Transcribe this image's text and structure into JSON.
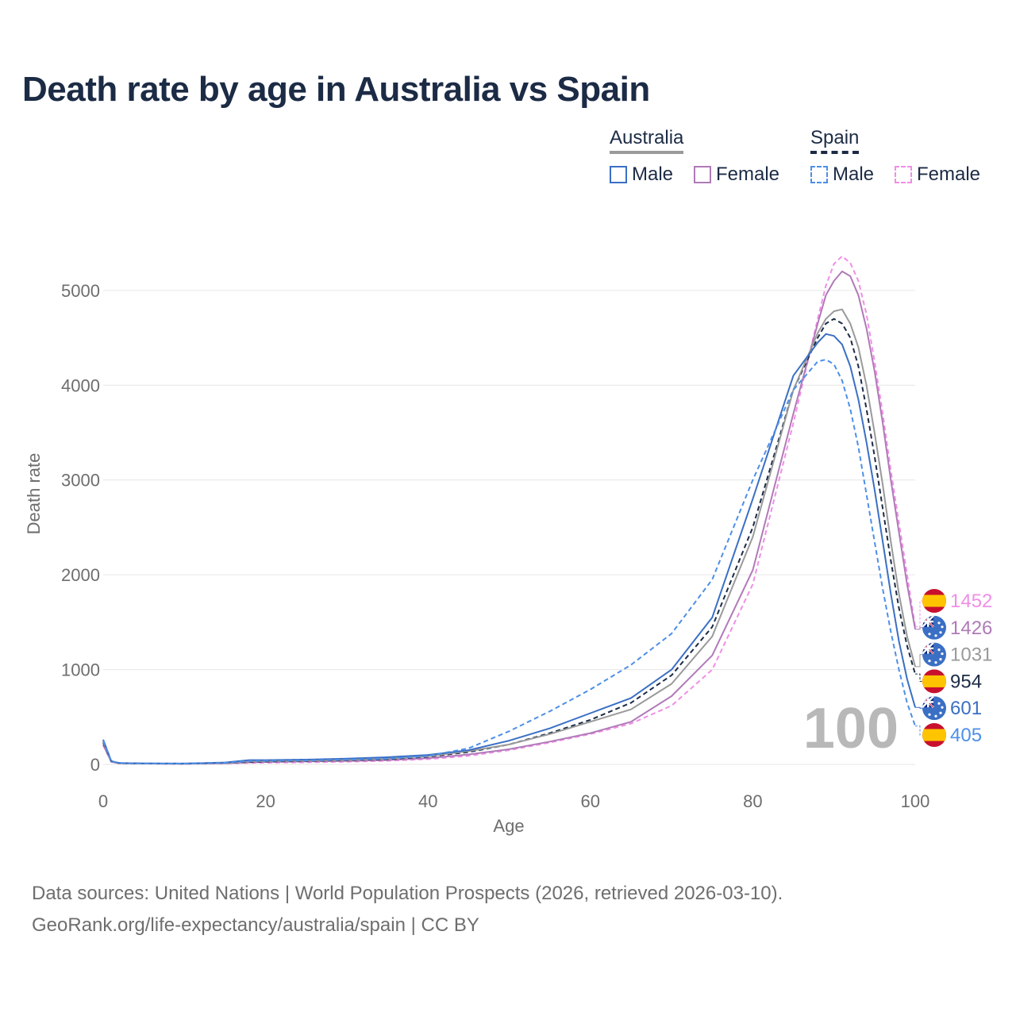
{
  "title": "Death rate by age in Australia vs Spain",
  "legend": {
    "groups": [
      {
        "name": "Australia",
        "items": [
          {
            "label": "Male",
            "color": "#3a6fc4",
            "dash": false
          },
          {
            "label": "Female",
            "color": "#b07ab8",
            "dash": false
          }
        ]
      },
      {
        "name": "Spain",
        "items": [
          {
            "label": "Male",
            "color": "#4d8fe8",
            "dash": true
          },
          {
            "label": "Female",
            "color": "#f08ee6",
            "dash": true
          }
        ]
      }
    ]
  },
  "sources": {
    "line1": "Data sources: United Nations | World Population Prospects (2026, retrieved 2026-03-10).",
    "line2": "GeoRank.org/life-expectancy/australia/spain | CC BY"
  },
  "chart_data": {
    "type": "line",
    "xlabel": "Age",
    "ylabel": "Death rate",
    "xlim": [
      0,
      100
    ],
    "ylim": [
      0,
      5300
    ],
    "x_ticks": [
      0,
      20,
      40,
      60,
      80,
      100
    ],
    "y_ticks": [
      0,
      1000,
      2000,
      3000,
      4000,
      5000
    ],
    "grid": true,
    "current_age_label": "100",
    "x": [
      0,
      1,
      2,
      5,
      10,
      15,
      18,
      20,
      25,
      30,
      35,
      40,
      45,
      50,
      55,
      60,
      65,
      70,
      75,
      80,
      85,
      88,
      89,
      90,
      91,
      92,
      93,
      94,
      95,
      96,
      97,
      98,
      99,
      100
    ],
    "series": [
      {
        "name": "Spain Female",
        "country": "Spain",
        "sex": "Female",
        "color": "#f08ee6",
        "dash": true,
        "end_label": "1452",
        "values": [
          200,
          25,
          12,
          8,
          7,
          10,
          16,
          18,
          22,
          28,
          38,
          55,
          90,
          150,
          230,
          320,
          430,
          620,
          1000,
          1900,
          3600,
          4700,
          5050,
          5280,
          5360,
          5290,
          5100,
          4750,
          4250,
          3700,
          3100,
          2550,
          2000,
          1452
        ]
      },
      {
        "name": "Australia Female",
        "country": "Australia",
        "sex": "Female",
        "color": "#b07ab8",
        "dash": false,
        "end_label": "1426",
        "values": [
          210,
          28,
          12,
          8,
          7,
          12,
          22,
          25,
          30,
          36,
          45,
          65,
          105,
          160,
          240,
          330,
          450,
          720,
          1150,
          2050,
          3700,
          4650,
          4950,
          5100,
          5200,
          5150,
          4950,
          4600,
          4150,
          3600,
          3000,
          2450,
          1900,
          1426
        ]
      },
      {
        "name": "Spain combined",
        "country": "Spain",
        "sex": "Total",
        "color": "#1c2b45",
        "dash": true,
        "end_label": "954",
        "values": [
          230,
          30,
          12,
          8,
          7,
          14,
          26,
          30,
          36,
          44,
          55,
          80,
          130,
          210,
          330,
          470,
          650,
          940,
          1450,
          2500,
          3950,
          4500,
          4650,
          4700,
          4650,
          4500,
          4200,
          3750,
          3250,
          2700,
          2150,
          1650,
          1250,
          954
        ]
      },
      {
        "name": "Australia combined",
        "country": "Australia",
        "sex": "Total",
        "color": "#9a9a9a",
        "dash": false,
        "end_label": "1031",
        "values": [
          240,
          32,
          13,
          9,
          8,
          16,
          33,
          35,
          40,
          48,
          62,
          85,
          140,
          210,
          320,
          450,
          580,
          850,
          1350,
          2400,
          3950,
          4550,
          4700,
          4780,
          4800,
          4650,
          4400,
          4000,
          3500,
          2950,
          2350,
          1800,
          1350,
          1031
        ]
      },
      {
        "name": "Australia Male",
        "country": "Australia",
        "sex": "Male",
        "color": "#3a6fc4",
        "dash": false,
        "end_label": "601",
        "values": [
          260,
          35,
          14,
          10,
          9,
          20,
          45,
          45,
          50,
          60,
          75,
          100,
          150,
          250,
          380,
          540,
          700,
          1000,
          1550,
          2800,
          4100,
          4450,
          4540,
          4520,
          4430,
          4200,
          3850,
          3400,
          2900,
          2350,
          1800,
          1300,
          900,
          601
        ]
      },
      {
        "name": "Spain Male",
        "country": "Spain",
        "sex": "Male",
        "color": "#4d8fe8",
        "dash": true,
        "end_label": "405",
        "values": [
          250,
          32,
          13,
          9,
          8,
          17,
          35,
          38,
          42,
          50,
          60,
          90,
          170,
          350,
          560,
          790,
          1050,
          1380,
          1950,
          3000,
          3950,
          4250,
          4270,
          4220,
          4050,
          3750,
          3350,
          2850,
          2350,
          1850,
          1400,
          1000,
          650,
          405
        ]
      }
    ]
  }
}
